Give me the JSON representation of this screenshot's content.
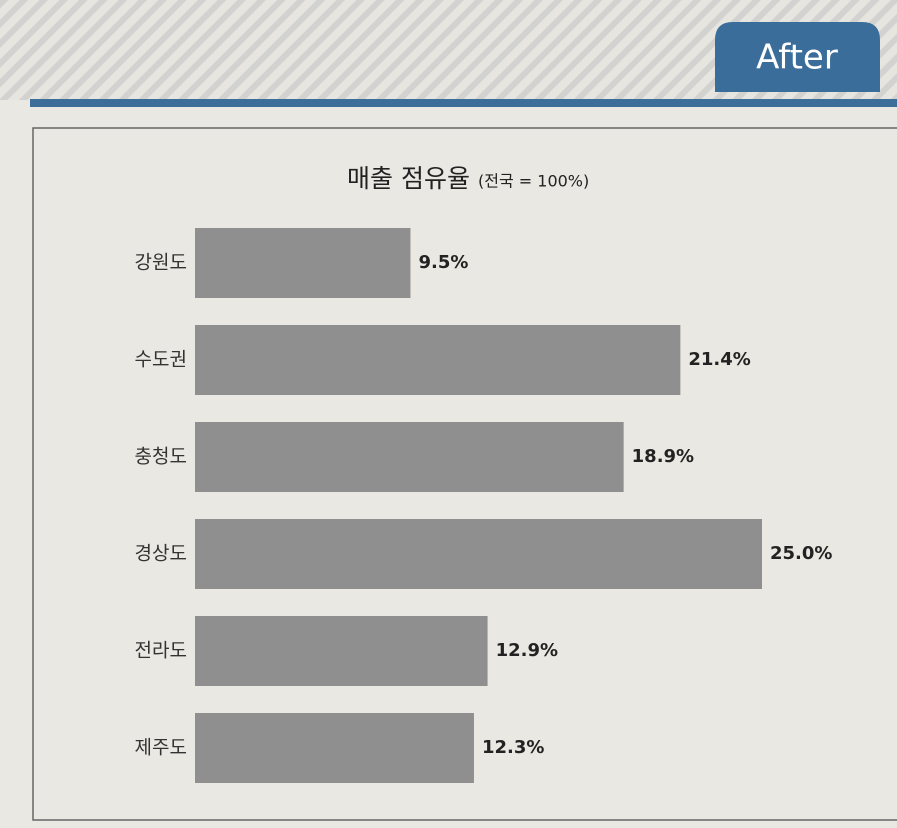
{
  "header": {
    "badge": "After"
  },
  "chart_data": {
    "type": "hbar",
    "title": "매출 점유율",
    "subtitle": "(전국 = 100%)",
    "categories": [
      "강원도",
      "수도권",
      "충청도",
      "경상도",
      "전라도",
      "제주도"
    ],
    "values": [
      9.5,
      21.4,
      18.9,
      25.0,
      12.9,
      12.3
    ],
    "value_labels": [
      "9.5%",
      "21.4%",
      "18.9%",
      "25.0%",
      "12.9%",
      "12.3%"
    ],
    "color": "#8f8f8f"
  }
}
